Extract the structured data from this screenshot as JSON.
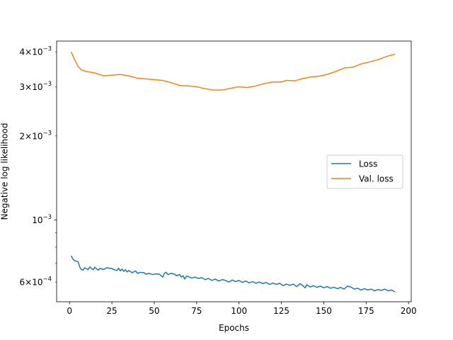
{
  "chart_data": {
    "type": "line",
    "xlabel": "Epochs",
    "ylabel": "Negative log likelihood",
    "yscale": "log",
    "xlim": [
      -7.6,
      201.6
    ],
    "ylim": [
      0.00051,
      0.00437
    ],
    "x_ticks": [
      0,
      25,
      50,
      75,
      100,
      125,
      150,
      175,
      200
    ],
    "y_major_ticks": [
      {
        "value": 0.001,
        "base": "10",
        "exp": "−3"
      }
    ],
    "y_minor_labeled_ticks": [
      {
        "value": 0.0006,
        "coef": "6",
        "exp": "−4"
      },
      {
        "value": 0.002,
        "coef": "2",
        "exp": "−3"
      },
      {
        "value": 0.003,
        "coef": "3",
        "exp": "−3"
      },
      {
        "value": 0.004,
        "coef": "4",
        "exp": "−3"
      }
    ],
    "y_minor_unlabeled_ticks": [
      0.0007,
      0.0008,
      0.0009
    ],
    "legend_position": "center-right",
    "series": [
      {
        "name": "Loss",
        "color": "#1f77b4",
        "points": [
          [
            1,
            0.000745
          ],
          [
            2,
            0.000725
          ],
          [
            3,
            0.000715
          ],
          [
            5,
            0.00071
          ],
          [
            6,
            0.00068
          ],
          [
            7,
            0.000665
          ],
          [
            8,
            0.000662
          ],
          [
            9,
            0.000675
          ],
          [
            10,
            0.00067
          ],
          [
            11,
            0.000665
          ],
          [
            12,
            0.00068
          ],
          [
            13,
            0.00067
          ],
          [
            14,
            0.000665
          ],
          [
            15,
            0.000678
          ],
          [
            16,
            0.000668
          ],
          [
            17,
            0.000662
          ],
          [
            18,
            0.000672
          ],
          [
            19,
            0.000668
          ],
          [
            20,
            0.000665
          ],
          [
            22,
            0.000675
          ],
          [
            25,
            0.00067
          ],
          [
            27,
            0.000662
          ],
          [
            28,
            0.00066
          ],
          [
            29,
            0.000672
          ],
          [
            30,
            0.000658
          ],
          [
            31,
            0.000668
          ],
          [
            32,
            0.000655
          ],
          [
            33,
            0.000664
          ],
          [
            34,
            0.000652
          ],
          [
            35,
            0.00066
          ],
          [
            37,
            0.000648
          ],
          [
            39,
            0.000658
          ],
          [
            40,
            0.000645
          ],
          [
            42,
            0.00065
          ],
          [
            44,
            0.000648
          ],
          [
            45,
            0.00064
          ],
          [
            47,
            0.000645
          ],
          [
            49,
            0.000638
          ],
          [
            51,
            0.000642
          ],
          [
            53,
            0.00064
          ],
          [
            55,
            0.000625
          ],
          [
            56,
            0.000645
          ],
          [
            57,
            0.00065
          ],
          [
            58,
            0.000638
          ],
          [
            60,
            0.000645
          ],
          [
            62,
            0.00064
          ],
          [
            63,
            0.000632
          ],
          [
            65,
            0.000638
          ],
          [
            66,
            0.000625
          ],
          [
            67,
            0.000632
          ],
          [
            68,
            0.000615
          ],
          [
            69,
            0.00063
          ],
          [
            70,
            0.000628
          ],
          [
            72,
            0.00062
          ],
          [
            74,
            0.000625
          ],
          [
            76,
            0.000618
          ],
          [
            78,
            0.000622
          ],
          [
            80,
            0.000612
          ],
          [
            82,
            0.000618
          ],
          [
            84,
            0.000608
          ],
          [
            86,
            0.000615
          ],
          [
            88,
            0.000605
          ],
          [
            90,
            0.000612
          ],
          [
            92,
            0.000608
          ],
          [
            94,
            0.0006
          ],
          [
            96,
            0.00061
          ],
          [
            98,
            0.000602
          ],
          [
            100,
            0.000608
          ],
          [
            102,
            0.000598
          ],
          [
            104,
            0.000605
          ],
          [
            106,
            0.000596
          ],
          [
            108,
            0.000602
          ],
          [
            110,
            0.000594
          ],
          [
            112,
            0.0006
          ],
          [
            114,
            0.000592
          ],
          [
            116,
            0.000598
          ],
          [
            118,
            0.000588
          ],
          [
            120,
            0.000595
          ],
          [
            122,
            0.000588
          ],
          [
            124,
            0.000594
          ],
          [
            126,
            0.000582
          ],
          [
            128,
            0.00059
          ],
          [
            130,
            0.000584
          ],
          [
            132,
            0.00059
          ],
          [
            134,
            0.000578
          ],
          [
            136,
            0.000592
          ],
          [
            138,
            0.00058
          ],
          [
            139,
            0.000572
          ],
          [
            140,
            0.000586
          ],
          [
            142,
            0.000576
          ],
          [
            144,
            0.000582
          ],
          [
            146,
            0.000574
          ],
          [
            148,
            0.00058
          ],
          [
            150,
            0.000572
          ],
          [
            152,
            0.000578
          ],
          [
            154,
            0.00057
          ],
          [
            156,
            0.000575
          ],
          [
            158,
            0.000568
          ],
          [
            160,
            0.000574
          ],
          [
            162,
            0.000566
          ],
          [
            164,
            0.00058
          ],
          [
            166,
            0.000576
          ],
          [
            168,
            0.000566
          ],
          [
            170,
            0.00057
          ],
          [
            172,
            0.000562
          ],
          [
            174,
            0.000568
          ],
          [
            176,
            0.000562
          ],
          [
            178,
            0.000566
          ],
          [
            180,
            0.000558
          ],
          [
            182,
            0.000564
          ],
          [
            184,
            0.00056
          ],
          [
            186,
            0.000566
          ],
          [
            188,
            0.000558
          ],
          [
            190,
            0.000562
          ],
          [
            192,
            0.000553
          ]
        ]
      },
      {
        "name": "Val. loss",
        "color": "#ff7f0e",
        "points": [
          [
            1,
            0.004
          ],
          [
            3,
            0.00375
          ],
          [
            5,
            0.00355
          ],
          [
            7,
            0.00345
          ],
          [
            10,
            0.0034
          ],
          [
            14,
            0.00337
          ],
          [
            17,
            0.00333
          ],
          [
            20,
            0.00328
          ],
          [
            25,
            0.0033
          ],
          [
            30,
            0.00332
          ],
          [
            35,
            0.00328
          ],
          [
            40,
            0.00322
          ],
          [
            45,
            0.0032
          ],
          [
            50,
            0.00318
          ],
          [
            55,
            0.00316
          ],
          [
            60,
            0.0031
          ],
          [
            65,
            0.00303
          ],
          [
            70,
            0.00302
          ],
          [
            75,
            0.003
          ],
          [
            80,
            0.00295
          ],
          [
            85,
            0.00292
          ],
          [
            90,
            0.00292
          ],
          [
            95,
            0.00296
          ],
          [
            100,
            0.003
          ],
          [
            105,
            0.00298
          ],
          [
            110,
            0.00302
          ],
          [
            115,
            0.00308
          ],
          [
            120,
            0.00312
          ],
          [
            125,
            0.00312
          ],
          [
            128,
            0.00316
          ],
          [
            133,
            0.00315
          ],
          [
            137,
            0.0032
          ],
          [
            142,
            0.00325
          ],
          [
            147,
            0.00327
          ],
          [
            152,
            0.00332
          ],
          [
            157,
            0.0034
          ],
          [
            162,
            0.0035
          ],
          [
            167,
            0.00352
          ],
          [
            172,
            0.00362
          ],
          [
            177,
            0.00368
          ],
          [
            182,
            0.00375
          ],
          [
            187,
            0.00385
          ],
          [
            192,
            0.00392
          ]
        ]
      }
    ]
  }
}
